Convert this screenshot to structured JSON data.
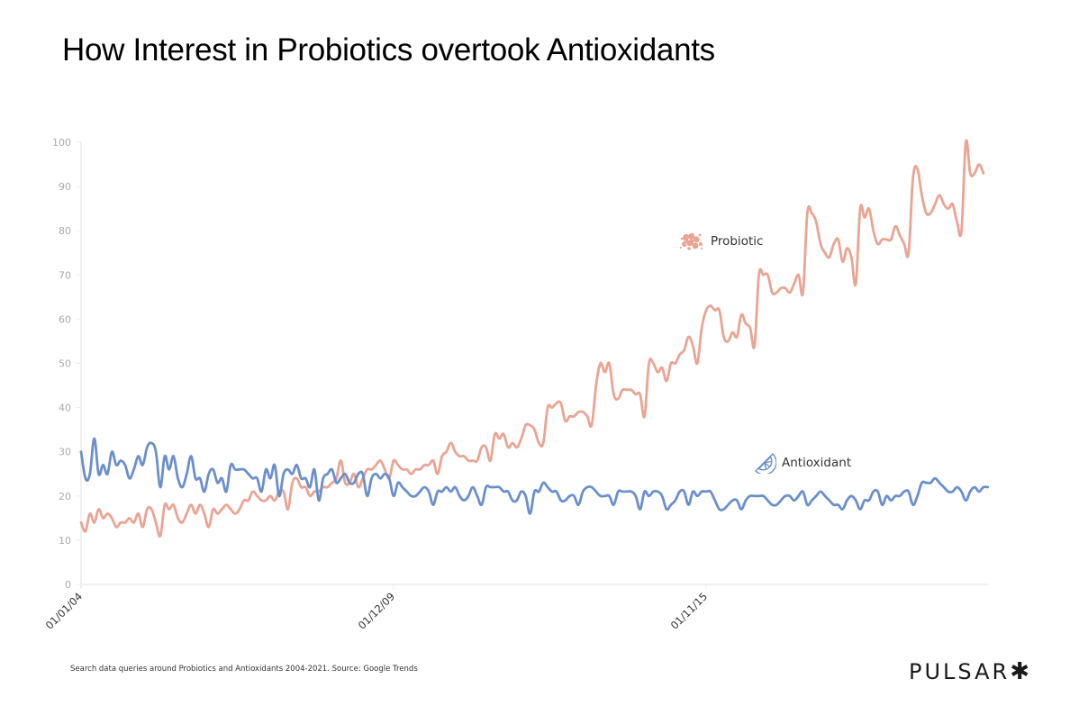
{
  "title": "How Interest in Probiotics overtook Antioxidants",
  "source": "Search data queries around Probiotics and Antioxidants 2004-2021. Source: Google Trends",
  "logo": "PULSAR",
  "logo_mark": "✱",
  "colors": {
    "probiotic": "#e9a493",
    "antioxidant": "#6b8fcc",
    "grid": "#ececec",
    "tick_text": "#aaaaaa"
  },
  "chart_data": {
    "type": "line",
    "title": "How Interest in Probiotics overtook Antioxidants",
    "xlabel": "",
    "ylabel": "",
    "ylim": [
      0,
      100
    ],
    "yticks": [
      "0",
      "10",
      "20",
      "30",
      "40",
      "50",
      "60",
      "70",
      "80",
      "90",
      "100"
    ],
    "xtick_labels": [
      "01/01/04",
      "01/12/09",
      "01/11/15"
    ],
    "xtick_index": [
      0,
      71,
      142
    ],
    "x_start": "2004-01",
    "x_step": "month",
    "grid": false,
    "legend": [
      {
        "name": "Probiotic",
        "icon": "bacteria-icon",
        "placement": "upper-right"
      },
      {
        "name": "Antioxidant",
        "icon": "citrus-slice-icon",
        "placement": "middle-right"
      }
    ],
    "series": [
      {
        "name": "Probiotic",
        "values": [
          14,
          12,
          16,
          14,
          17,
          15,
          16,
          15,
          13,
          14,
          14,
          15,
          14,
          16,
          13,
          17,
          17,
          14,
          11,
          18,
          17,
          18,
          15,
          14,
          16,
          18,
          16,
          18,
          16,
          13,
          17,
          16,
          17,
          18,
          17,
          16,
          17,
          19,
          19,
          21,
          20,
          19,
          19,
          20,
          19,
          21,
          21,
          17,
          23,
          24,
          22,
          22,
          20,
          21,
          21,
          22,
          22,
          23,
          24,
          28,
          23,
          23,
          25,
          22,
          24,
          26,
          26,
          27,
          28,
          26,
          24,
          28,
          27,
          26,
          26,
          25,
          26,
          26,
          27,
          27,
          28,
          25,
          29,
          30,
          32,
          30,
          29,
          29,
          28,
          28,
          28,
          31,
          31,
          28,
          34,
          33,
          34,
          31,
          32,
          31,
          33,
          36,
          36,
          35,
          32,
          32,
          40,
          40,
          41,
          41,
          37,
          38,
          38,
          39,
          39,
          38,
          36,
          45,
          50,
          48,
          50,
          43,
          42,
          44,
          44,
          44,
          43,
          43,
          38,
          50,
          50,
          48,
          49,
          46,
          50,
          50,
          52,
          53,
          56,
          54,
          50,
          58,
          62,
          63,
          62,
          62,
          56,
          55,
          57,
          56,
          61,
          59,
          58,
          54,
          70,
          70,
          70,
          66,
          66,
          67,
          67,
          66,
          68,
          70,
          66,
          84,
          84,
          82,
          77,
          75,
          74,
          77,
          78,
          73,
          76,
          74,
          68,
          85,
          83,
          85,
          80,
          77,
          78,
          78,
          78,
          81,
          79,
          77,
          75,
          92,
          94,
          88,
          84,
          84,
          86,
          88,
          86,
          85,
          86,
          82,
          80,
          100,
          93,
          93,
          95,
          93
        ]
      },
      {
        "name": "Antioxidant",
        "values": [
          30,
          24,
          25,
          33,
          25,
          27,
          25,
          30,
          27,
          28,
          27,
          24,
          26,
          29,
          27,
          31,
          32,
          30,
          22,
          29,
          26,
          29,
          24,
          22,
          25,
          29,
          24,
          24,
          21,
          25,
          26,
          23,
          24,
          21,
          27,
          26,
          26,
          26,
          25,
          24,
          24,
          21,
          26,
          24,
          27,
          20,
          25,
          26,
          25,
          27,
          24,
          24,
          22,
          26,
          19,
          24,
          25,
          26,
          23,
          24,
          25,
          23,
          23,
          25,
          25,
          20,
          24,
          25,
          24,
          25,
          24,
          20,
          23,
          22,
          21,
          20,
          20,
          21,
          22,
          21,
          18,
          21,
          21,
          22,
          21,
          22,
          20,
          19,
          20,
          22,
          20,
          18,
          22,
          22,
          22,
          22,
          21,
          21,
          19,
          19,
          21,
          20,
          16,
          21,
          21,
          23,
          22,
          21,
          21,
          19,
          19,
          20,
          20,
          18,
          21,
          22,
          22,
          21,
          20,
          20,
          20,
          18,
          21,
          21,
          21,
          21,
          20,
          17,
          21,
          20,
          21,
          21,
          20,
          17,
          18,
          19,
          21,
          21,
          18,
          21,
          20,
          21,
          21,
          21,
          19,
          17,
          17,
          18,
          19,
          19,
          17,
          19,
          20,
          20,
          20,
          20,
          19,
          18,
          18,
          19,
          20,
          20,
          19,
          20,
          21,
          18,
          19,
          20,
          21,
          20,
          19,
          18,
          18,
          17,
          19,
          20,
          19,
          17,
          19,
          19,
          21,
          21,
          18,
          20,
          19,
          20,
          20,
          21,
          21,
          18,
          20,
          23,
          23,
          23,
          24,
          23,
          22,
          21,
          21,
          22,
          21,
          19,
          21,
          22,
          21,
          22,
          22
        ]
      }
    ]
  }
}
